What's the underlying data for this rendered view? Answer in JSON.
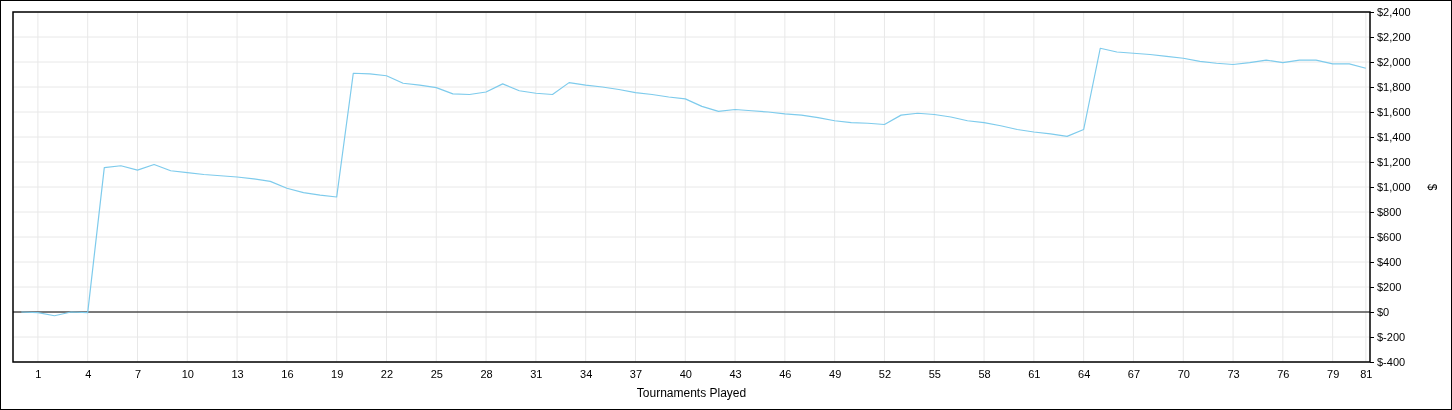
{
  "chart_data": {
    "type": "line",
    "xlabel": "Tournaments Played",
    "ylabel": "$",
    "x": [
      0,
      1,
      2,
      3,
      4,
      5,
      6,
      7,
      8,
      9,
      10,
      11,
      12,
      13,
      14,
      15,
      16,
      17,
      18,
      19,
      20,
      21,
      22,
      23,
      24,
      25,
      26,
      27,
      28,
      29,
      30,
      31,
      32,
      33,
      34,
      35,
      36,
      37,
      38,
      39,
      40,
      41,
      42,
      43,
      44,
      45,
      46,
      47,
      48,
      49,
      50,
      51,
      52,
      53,
      54,
      55,
      56,
      57,
      58,
      59,
      60,
      61,
      62,
      63,
      64,
      65,
      66,
      67,
      68,
      69,
      70,
      71,
      72,
      73,
      74,
      75,
      76,
      77,
      78,
      79,
      80,
      81
    ],
    "series": [
      {
        "color": "#7ecbec",
        "values": [
          0,
          -5,
          -30,
          0,
          -5,
          1155,
          1170,
          1135,
          1180,
          1130,
          1115,
          1100,
          1090,
          1080,
          1065,
          1045,
          990,
          955,
          935,
          920,
          1910,
          1905,
          1890,
          1830,
          1815,
          1795,
          1745,
          1740,
          1760,
          1825,
          1770,
          1750,
          1740,
          1835,
          1815,
          1800,
          1780,
          1755,
          1740,
          1720,
          1705,
          1645,
          1605,
          1620,
          1610,
          1600,
          1585,
          1575,
          1555,
          1530,
          1515,
          1510,
          1500,
          1575,
          1590,
          1580,
          1560,
          1530,
          1515,
          1490,
          1460,
          1440,
          1425,
          1405,
          1460,
          2110,
          2080,
          2070,
          2060,
          2045,
          2030,
          2005,
          1990,
          1980,
          1995,
          2015,
          1995,
          2015,
          2015,
          1985,
          1985,
          1950
        ]
      }
    ],
    "xlim": [
      -0.5,
      81.25
    ],
    "xticks": [
      1,
      4,
      7,
      10,
      13,
      16,
      19,
      22,
      25,
      28,
      31,
      34,
      37,
      40,
      43,
      46,
      49,
      52,
      55,
      58,
      61,
      64,
      67,
      70,
      73,
      76,
      79,
      81
    ],
    "ylim": [
      -400,
      2400
    ],
    "yticks": [
      {
        "value": -400,
        "label": "$-400"
      },
      {
        "value": -200,
        "label": "$-200"
      },
      {
        "value": 0,
        "label": "$0"
      },
      {
        "value": 200,
        "label": "$200"
      },
      {
        "value": 400,
        "label": "$400"
      },
      {
        "value": 600,
        "label": "$600"
      },
      {
        "value": 800,
        "label": "$800"
      },
      {
        "value": 1000,
        "label": "$1,000"
      },
      {
        "value": 1200,
        "label": "$1,200"
      },
      {
        "value": 1400,
        "label": "$1,400"
      },
      {
        "value": 1600,
        "label": "$1,600"
      },
      {
        "value": 1800,
        "label": "$1,800"
      },
      {
        "value": 2000,
        "label": "$2,000"
      },
      {
        "value": 2200,
        "label": "$2,200"
      },
      {
        "value": 2400,
        "label": "$2,400"
      }
    ],
    "grid": true,
    "marker": "none",
    "line_style": "solid",
    "ref_lines": [
      {
        "axis": "y",
        "value": 0,
        "color": "#000000"
      }
    ]
  }
}
